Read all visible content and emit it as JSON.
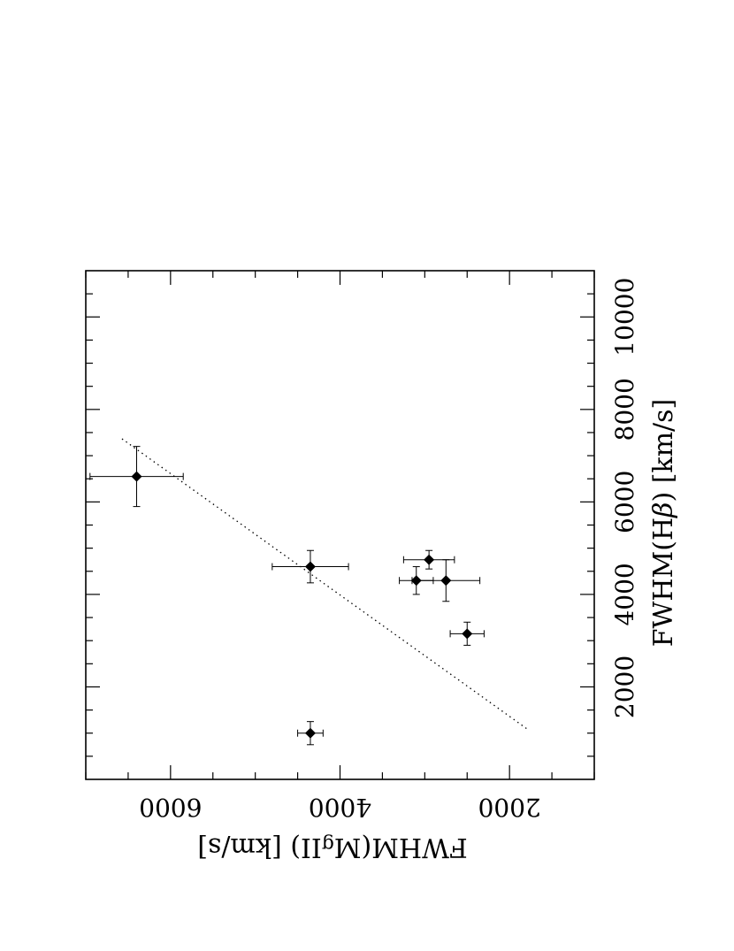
{
  "chart_data": {
    "type": "scatter",
    "xlabel_parts": [
      "FWHM(H",
      "β",
      ")  [km/s]"
    ],
    "ylabel_parts": [
      "FWHM(M",
      "g",
      "II)    [km/s]"
    ],
    "xlim": [
      0,
      11000
    ],
    "ylim": [
      1000,
      7000
    ],
    "xticks": [
      2000,
      4000,
      6000,
      8000,
      10000
    ],
    "yticks": [
      2000,
      4000,
      6000
    ],
    "points": [
      {
        "x": 1000,
        "y": 4350,
        "xerr": 250,
        "yerr": 150
      },
      {
        "x": 3150,
        "y": 2500,
        "xerr": 250,
        "yerr": 200
      },
      {
        "x": 4300,
        "y": 2750,
        "xerr": 450,
        "yerr": 400
      },
      {
        "x": 4300,
        "y": 3100,
        "xerr": 300,
        "yerr": 200
      },
      {
        "x": 4750,
        "y": 2950,
        "xerr": 200,
        "yerr": 300
      },
      {
        "x": 4600,
        "y": 4350,
        "xerr": 350,
        "yerr": 450
      },
      {
        "x": 6550,
        "y": 6400,
        "xerr": 650,
        "yerr": 550
      }
    ],
    "fit_line": {
      "x": [
        1100,
        7400
      ],
      "y": [
        1800,
        6600
      ],
      "style": "dotted"
    },
    "grid": false,
    "orientation": "rotated-90"
  }
}
